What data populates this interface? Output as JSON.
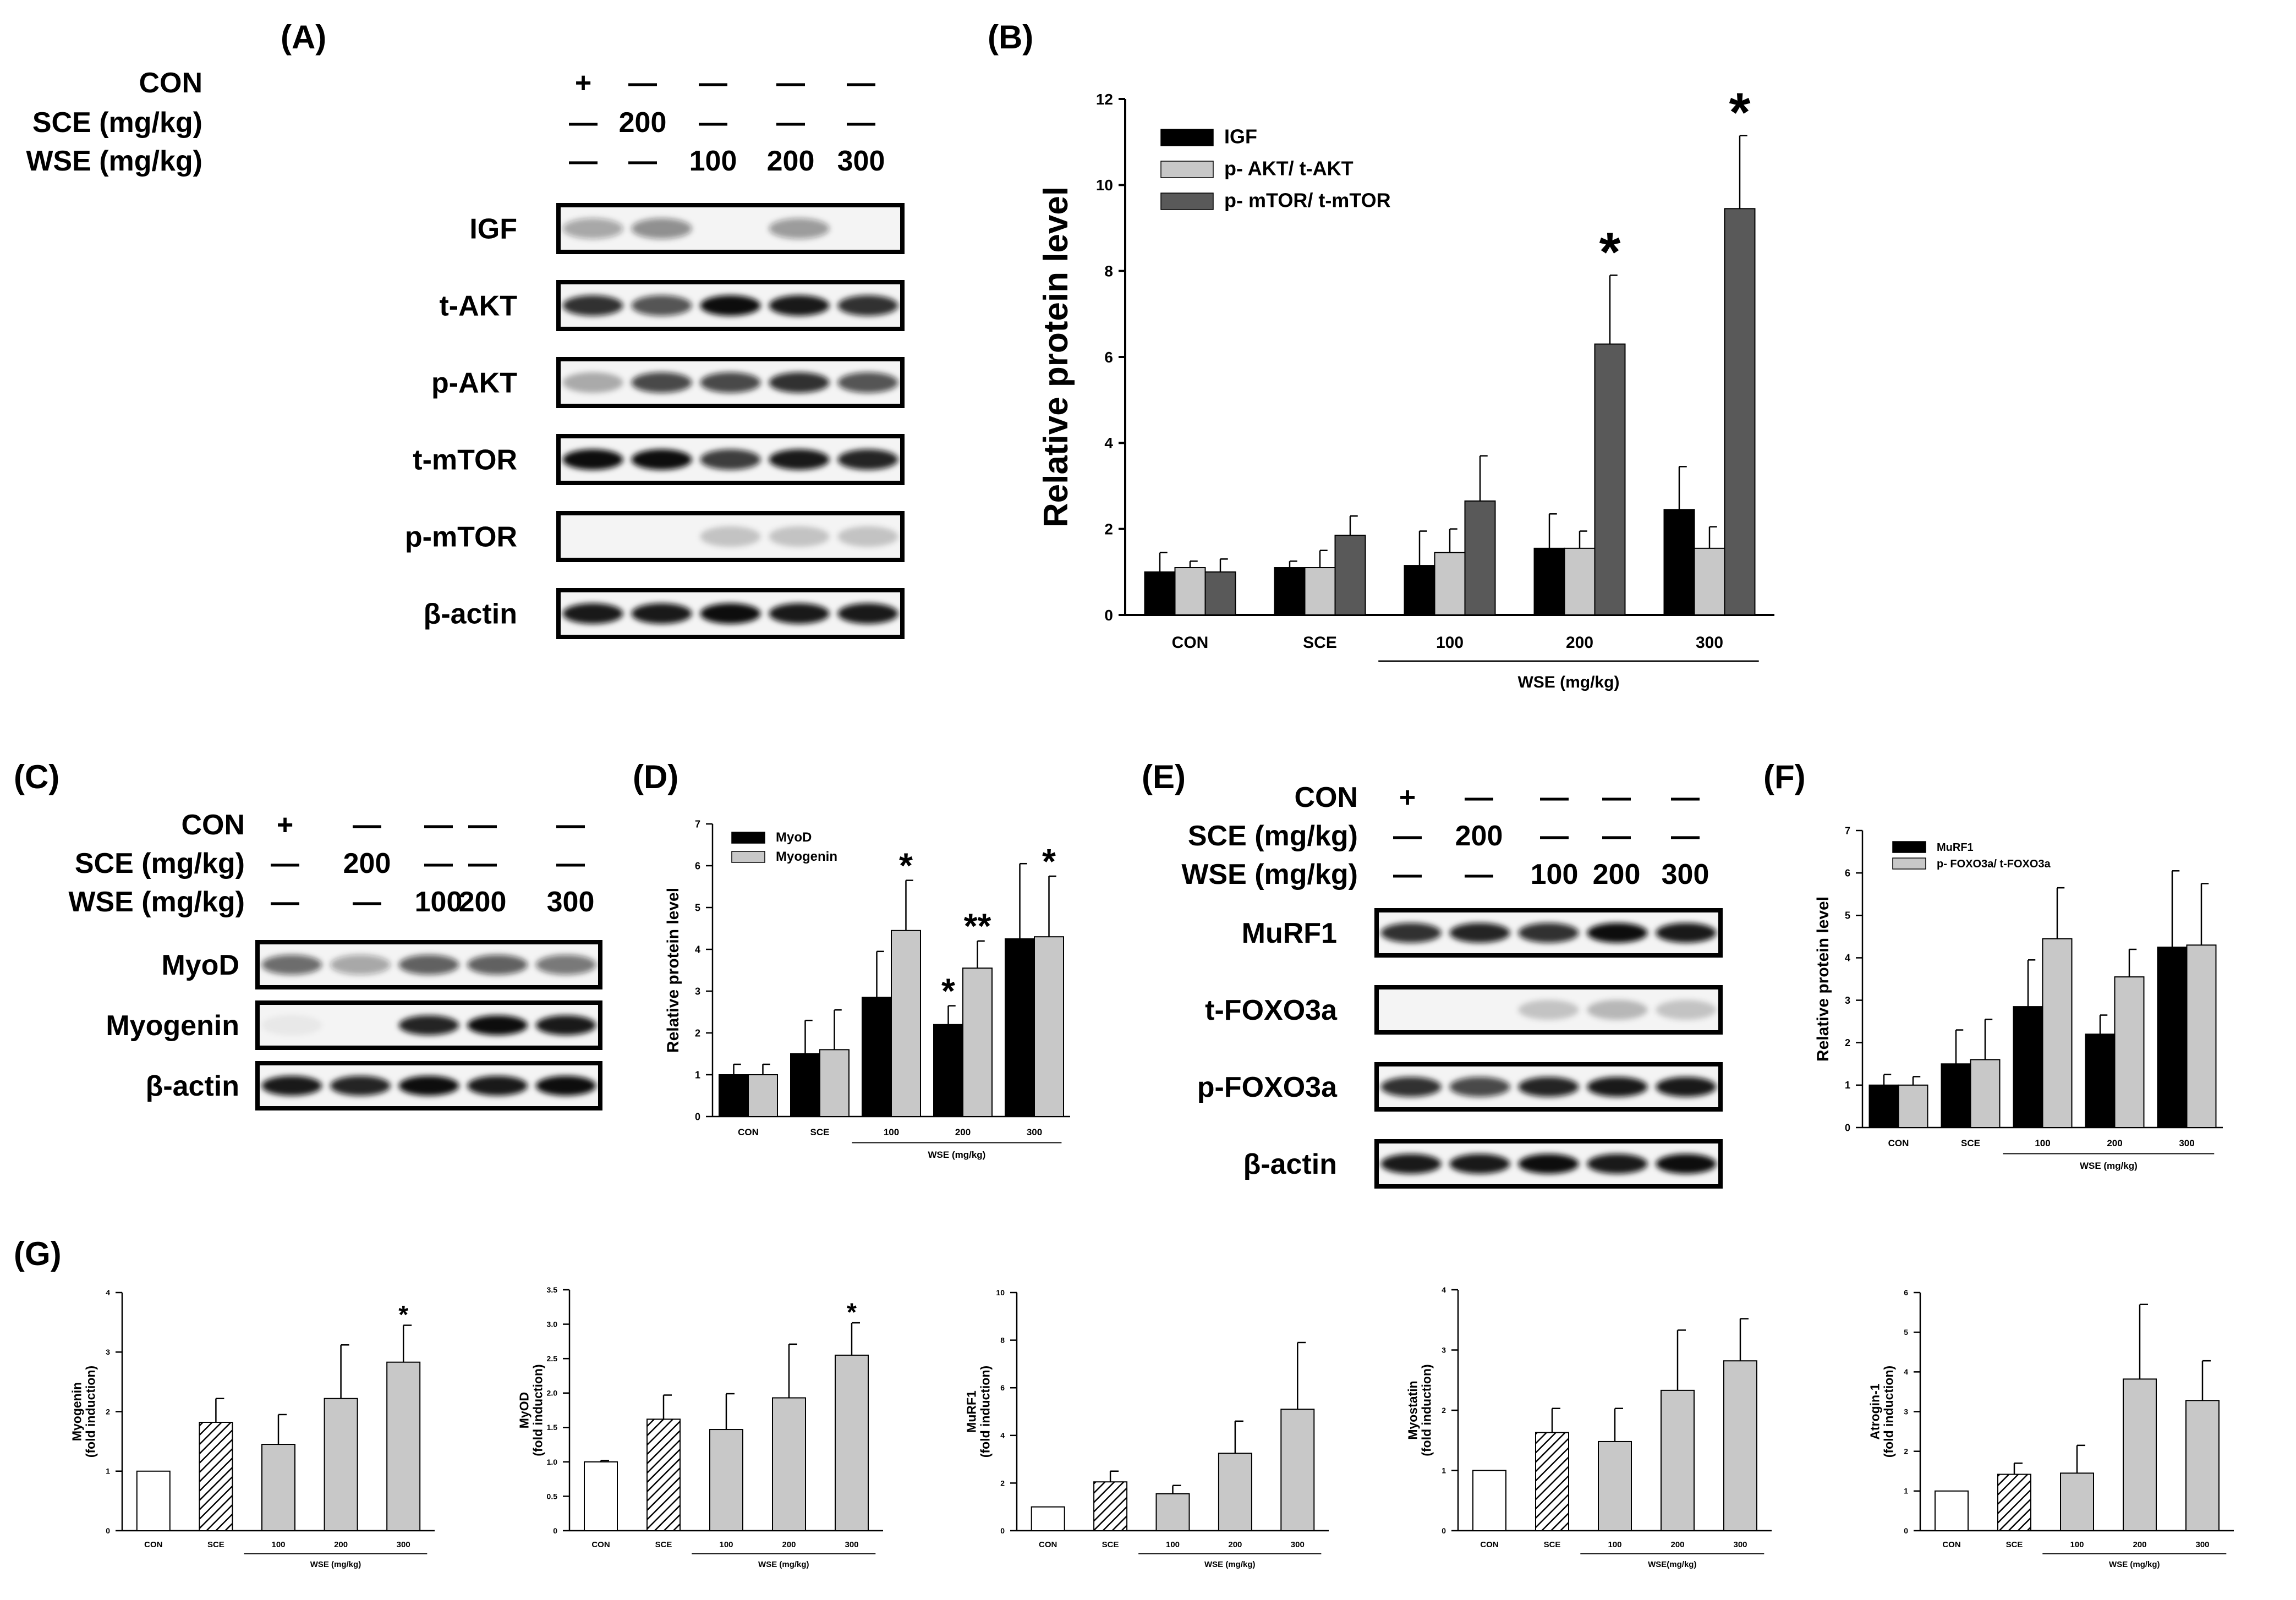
{
  "panels": {
    "A": {
      "label": "(A)",
      "treatments": [
        {
          "name": "CON",
          "cells": [
            "+",
            "—",
            "—",
            "—",
            "—"
          ]
        },
        {
          "name": "SCE (mg/kg)",
          "cells": [
            "—",
            "200",
            "—",
            "—",
            "—"
          ]
        },
        {
          "name": "WSE (mg/kg)",
          "cells": [
            "—",
            "—",
            "100",
            "200",
            "300"
          ]
        }
      ],
      "blots": [
        {
          "name": "IGF",
          "intensity": [
            0.35,
            0.45,
            0.0,
            0.4,
            0.0
          ]
        },
        {
          "name": "t-AKT",
          "intensity": [
            0.85,
            0.7,
            1.0,
            0.95,
            0.85
          ]
        },
        {
          "name": "p-AKT",
          "intensity": [
            0.3,
            0.75,
            0.75,
            0.85,
            0.7
          ]
        },
        {
          "name": "t-mTOR",
          "intensity": [
            1.0,
            1.0,
            0.8,
            0.95,
            0.9
          ]
        },
        {
          "name": "p-mTOR",
          "intensity": [
            0.0,
            0.0,
            0.2,
            0.2,
            0.2
          ]
        },
        {
          "name": "β-actin",
          "intensity": [
            0.95,
            0.95,
            1.0,
            0.95,
            0.95
          ]
        }
      ]
    },
    "C": {
      "label": "(C)",
      "treatments": [
        {
          "name": "CON",
          "cells": [
            "+",
            "—",
            "—",
            "—",
            "—"
          ]
        },
        {
          "name": "SCE (mg/kg)",
          "cells": [
            "—",
            "200",
            "—",
            "—",
            "—"
          ]
        },
        {
          "name": "WSE (mg/kg)",
          "cells": [
            "—",
            "—",
            "100",
            "200",
            "300"
          ]
        }
      ],
      "blots": [
        {
          "name": "MyoD",
          "intensity": [
            0.6,
            0.35,
            0.65,
            0.65,
            0.55
          ]
        },
        {
          "name": "Myogenin",
          "intensity": [
            0.05,
            0.0,
            0.9,
            1.0,
            0.95
          ]
        },
        {
          "name": "β-actin",
          "intensity": [
            0.95,
            0.9,
            1.0,
            0.95,
            1.0
          ]
        }
      ]
    },
    "E": {
      "label": "(E)",
      "treatments": [
        {
          "name": "CON",
          "cells": [
            "+",
            "—",
            "—",
            "—",
            "—"
          ]
        },
        {
          "name": "SCE (mg/kg)",
          "cells": [
            "—",
            "200",
            "—",
            "—",
            "—"
          ]
        },
        {
          "name": "WSE (mg/kg)",
          "cells": [
            "—",
            "—",
            "100",
            "200",
            "300"
          ]
        }
      ],
      "blots": [
        {
          "name": "MuRF1",
          "intensity": [
            0.85,
            0.9,
            0.85,
            1.0,
            0.95
          ]
        },
        {
          "name": "t-FOXO3a",
          "intensity": [
            0.0,
            0.0,
            0.2,
            0.25,
            0.2
          ]
        },
        {
          "name": "p-FOXO3a",
          "intensity": [
            0.85,
            0.75,
            0.9,
            0.95,
            0.95
          ]
        },
        {
          "name": "β-actin",
          "intensity": [
            0.95,
            0.95,
            1.0,
            0.95,
            1.0
          ]
        }
      ]
    },
    "G": {
      "label": "(G)"
    }
  },
  "chart_data": [
    {
      "id": "B",
      "label": "(B)",
      "type": "bar",
      "title": "",
      "xlabel": "",
      "ylabel": "Relative protein level",
      "categories": [
        "CON",
        "SCE",
        "100",
        "200",
        "300"
      ],
      "group_label": "WSE (mg/kg)",
      "ylim": [
        0,
        12
      ],
      "yticks": [
        "0",
        "2",
        "4",
        "6",
        "8",
        "10",
        "12"
      ],
      "legend_position": "top-left",
      "series": [
        {
          "name": "IGF",
          "color": "#000000",
          "values": [
            1.0,
            1.1,
            1.15,
            1.55,
            2.45
          ],
          "errors": [
            0.45,
            0.15,
            0.8,
            0.8,
            1.0
          ]
        },
        {
          "name": "p- AKT/ t-AKT",
          "color": "#c8c8c8",
          "values": [
            1.1,
            1.1,
            1.45,
            1.55,
            1.55
          ],
          "errors": [
            0.15,
            0.4,
            0.55,
            0.4,
            0.5
          ]
        },
        {
          "name": "p- mTOR/ t-mTOR",
          "color": "#595959",
          "values": [
            1.0,
            1.85,
            2.65,
            6.3,
            9.45
          ],
          "errors": [
            0.3,
            0.45,
            1.05,
            1.6,
            1.7
          ]
        }
      ],
      "annotations": [
        {
          "category": "200",
          "series": "p- mTOR/ t-mTOR",
          "text": "*"
        },
        {
          "category": "300",
          "series": "p- mTOR/ t-mTOR",
          "text": "*"
        }
      ]
    },
    {
      "id": "D",
      "label": "(D)",
      "type": "bar",
      "title": "",
      "xlabel": "",
      "ylabel": "Relative protein level",
      "categories": [
        "CON",
        "SCE",
        "100",
        "200",
        "300"
      ],
      "group_label": "WSE (mg/kg)",
      "ylim": [
        0,
        7
      ],
      "yticks": [
        "0",
        "1",
        "2",
        "3",
        "4",
        "5",
        "6",
        "7"
      ],
      "legend_position": "top-left",
      "series": [
        {
          "name": "MyoD",
          "color": "#000000",
          "values": [
            1.0,
            1.5,
            2.85,
            2.2,
            4.25
          ],
          "errors": [
            0.25,
            0.8,
            1.1,
            0.45,
            1.8
          ]
        },
        {
          "name": "Myogenin",
          "color": "#c8c8c8",
          "values": [
            1.0,
            1.6,
            4.45,
            3.55,
            4.3
          ],
          "errors": [
            0.25,
            0.95,
            1.2,
            0.65,
            1.45
          ]
        }
      ],
      "annotations": [
        {
          "category": "100",
          "series": "Myogenin",
          "text": "*"
        },
        {
          "category": "200",
          "series": "MyoD",
          "text": "*"
        },
        {
          "category": "200",
          "series": "Myogenin",
          "text": "**"
        },
        {
          "category": "300",
          "series": "Myogenin",
          "text": "*"
        }
      ]
    },
    {
      "id": "F",
      "label": "(F)",
      "type": "bar",
      "title": "",
      "xlabel": "",
      "ylabel": "Relative protein level",
      "categories": [
        "CON",
        "SCE",
        "100",
        "200",
        "300"
      ],
      "group_label": "WSE (mg/kg)",
      "ylim": [
        0,
        7
      ],
      "yticks": [
        "0",
        "1",
        "2",
        "3",
        "4",
        "5",
        "6",
        "7"
      ],
      "legend_position": "top-left",
      "series": [
        {
          "name": "MuRF1",
          "color": "#000000",
          "values": [
            1.0,
            1.5,
            2.85,
            2.2,
            4.25
          ],
          "errors": [
            0.25,
            0.8,
            1.1,
            0.45,
            1.8
          ]
        },
        {
          "name": "p- FOXO3a/ t-FOXO3a",
          "color": "#c8c8c8",
          "values": [
            1.0,
            1.6,
            4.45,
            3.55,
            4.3
          ],
          "errors": [
            0.2,
            0.95,
            1.2,
            0.65,
            1.45
          ]
        }
      ],
      "annotations": []
    },
    {
      "id": "G1",
      "type": "bar",
      "ylabel": "Myogenin\n(fold induction)",
      "categories": [
        "CON",
        "SCE",
        "100",
        "200",
        "300"
      ],
      "group_label": "WSE (mg/kg)",
      "ylim": [
        0,
        4
      ],
      "yticks": [
        "0",
        "1",
        "2",
        "3",
        "4"
      ],
      "values": [
        1.0,
        1.82,
        1.45,
        2.22,
        2.83
      ],
      "errors": [
        0,
        0.4,
        0.5,
        0.9,
        0.62
      ],
      "annotations": [
        {
          "category": "300",
          "text": "*"
        }
      ]
    },
    {
      "id": "G2",
      "type": "bar",
      "ylabel": "MyOD\n(fold induction)",
      "categories": [
        "CON",
        "SCE",
        "100",
        "200",
        "300"
      ],
      "group_label": "WSE (mg/kg)",
      "ylim": [
        0,
        3.5
      ],
      "yticks": [
        "0",
        "0.5",
        "1.0",
        "1.5",
        "2.0",
        "2.5",
        "3.0",
        "3.5"
      ],
      "values": [
        1.0,
        1.62,
        1.47,
        1.93,
        2.55
      ],
      "errors": [
        0.02,
        0.35,
        0.52,
        0.78,
        0.47
      ],
      "annotations": [
        {
          "category": "300",
          "text": "*"
        }
      ]
    },
    {
      "id": "G3",
      "type": "bar",
      "ylabel": "MuRF1\n(fold induction)",
      "categories": [
        "CON",
        "SCE",
        "100",
        "200",
        "300"
      ],
      "group_label": "WSE (mg/kg)",
      "ylim": [
        0,
        10
      ],
      "yticks": [
        "0",
        "2",
        "4",
        "6",
        "8",
        "10"
      ],
      "values": [
        1.0,
        2.05,
        1.55,
        3.25,
        5.1
      ],
      "errors": [
        0,
        0.45,
        0.35,
        1.35,
        2.8
      ],
      "annotations": []
    },
    {
      "id": "G4",
      "type": "bar",
      "ylabel": "Myostatin\n(fold induction)",
      "categories": [
        "CON",
        "SCE",
        "100",
        "200",
        "300"
      ],
      "group_label": "WSE(mg/kg)",
      "ylim": [
        0,
        4
      ],
      "yticks": [
        "0",
        "1",
        "2",
        "3",
        "4"
      ],
      "values": [
        1.0,
        1.63,
        1.48,
        2.33,
        2.82
      ],
      "errors": [
        0,
        0.4,
        0.55,
        1.0,
        0.7
      ],
      "annotations": []
    },
    {
      "id": "G5",
      "type": "bar",
      "ylabel": "Atrogin-1\n(fold induction)",
      "categories": [
        "CON",
        "SCE",
        "100",
        "200",
        "300"
      ],
      "group_label": "WSE (mg/kg)",
      "ylim": [
        0,
        6
      ],
      "yticks": [
        "0",
        "1",
        "2",
        "3",
        "4",
        "5",
        "6"
      ],
      "values": [
        1.0,
        1.42,
        1.45,
        3.82,
        3.28
      ],
      "errors": [
        0,
        0.28,
        0.7,
        1.88,
        1.0
      ],
      "annotations": []
    }
  ],
  "colors": {
    "bar_white": "#ffffff",
    "bar_gray": "#c8c8c8",
    "blot_bg": "#f4f4f4",
    "blot_band": "#111111"
  }
}
